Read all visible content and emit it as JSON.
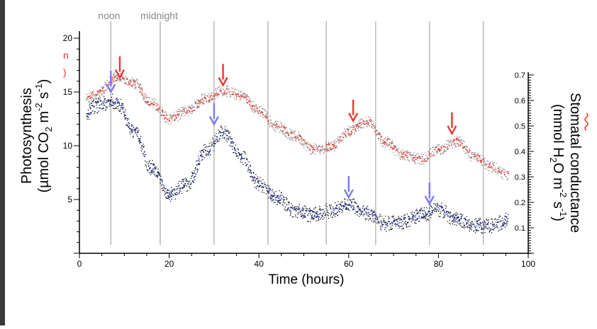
{
  "chart_data": {
    "type": "scatter",
    "x": [
      0,
      4,
      8,
      12,
      16,
      20,
      24,
      28,
      32,
      36,
      40,
      44,
      48,
      52,
      56,
      60,
      64,
      68,
      72,
      76,
      80,
      84,
      88,
      92,
      95
    ],
    "series": [
      {
        "name": "Stomatal conductance",
        "axis": "right",
        "color": "#e8372e",
        "noise_color": "#8a8a8a",
        "values": [
          0.59,
          0.63,
          0.69,
          0.67,
          0.59,
          0.53,
          0.56,
          0.61,
          0.64,
          0.62,
          0.56,
          0.5,
          0.46,
          0.41,
          0.42,
          0.48,
          0.52,
          0.44,
          0.39,
          0.37,
          0.41,
          0.44,
          0.38,
          0.34,
          0.31
        ]
      },
      {
        "name": "Photosynthesis",
        "axis": "left",
        "color": "#1a2a9c",
        "noise_color": "#111111",
        "values": [
          12.5,
          13.8,
          14.2,
          11.5,
          8.0,
          5.5,
          6.5,
          9.5,
          11.3,
          9.0,
          6.5,
          5.2,
          4.0,
          3.6,
          4.0,
          4.6,
          3.8,
          2.8,
          3.0,
          3.6,
          4.1,
          3.2,
          2.6,
          2.6,
          3.1
        ]
      }
    ],
    "xlabel": "Time (hours)",
    "ylabel_left": {
      "line1": "Photosynthesis",
      "line2_prefix": "(µmol CO",
      "line2_sub": "2",
      "line2_middle": " m",
      "line2_sup": "-2",
      "line2_tail": " s",
      "line2_sup2": "-1",
      "line2_end": ")"
    },
    "ylabel_right": {
      "line1": "Stomatal conductance",
      "line2_prefix": "(mmol H",
      "line2_sub": "2",
      "line2_middle": "O m",
      "line2_sup": "-2",
      "line2_tail": " s",
      "line2_sup2": "-1",
      "line2_end": ")"
    },
    "xlim": [
      0,
      100
    ],
    "ylim_left": [
      0,
      21
    ],
    "ylim_right": [
      0,
      0.72
    ],
    "xticks": [
      0,
      20,
      40,
      60,
      80,
      100
    ],
    "yticks_left": [
      5,
      10,
      15,
      20
    ],
    "yticks_right": [
      0.1,
      0.2,
      0.3,
      0.4,
      0.5,
      0.6,
      0.7
    ],
    "vlines": [
      7,
      18,
      30,
      42,
      55,
      66,
      78,
      90
    ],
    "top_annotations": [
      {
        "text": "noon",
        "x": 7
      },
      {
        "text": "midnight",
        "x": 18
      }
    ],
    "side_fragment": {
      "line1": "n",
      "line2": ")"
    },
    "arrows_red": [
      {
        "x": 9,
        "y_tip": 0.69
      },
      {
        "x": 32,
        "y_tip": 0.66
      },
      {
        "x": 61,
        "y_tip": 0.52
      },
      {
        "x": 83,
        "y_tip": 0.47
      }
    ],
    "arrows_blue": [
      {
        "x": 7,
        "y_tip": 15.0
      },
      {
        "x": 30,
        "y_tip": 12.0
      },
      {
        "x": 60,
        "y_tip": 5.2
      },
      {
        "x": 78,
        "y_tip": 4.6
      }
    ],
    "colors": {
      "axis": "#000000",
      "vline": "#bdbdbd",
      "annotation": "#888888",
      "arrow_red": "#e8372e",
      "arrow_blue": "#7a7af0",
      "fragment": "#e8372e"
    }
  }
}
